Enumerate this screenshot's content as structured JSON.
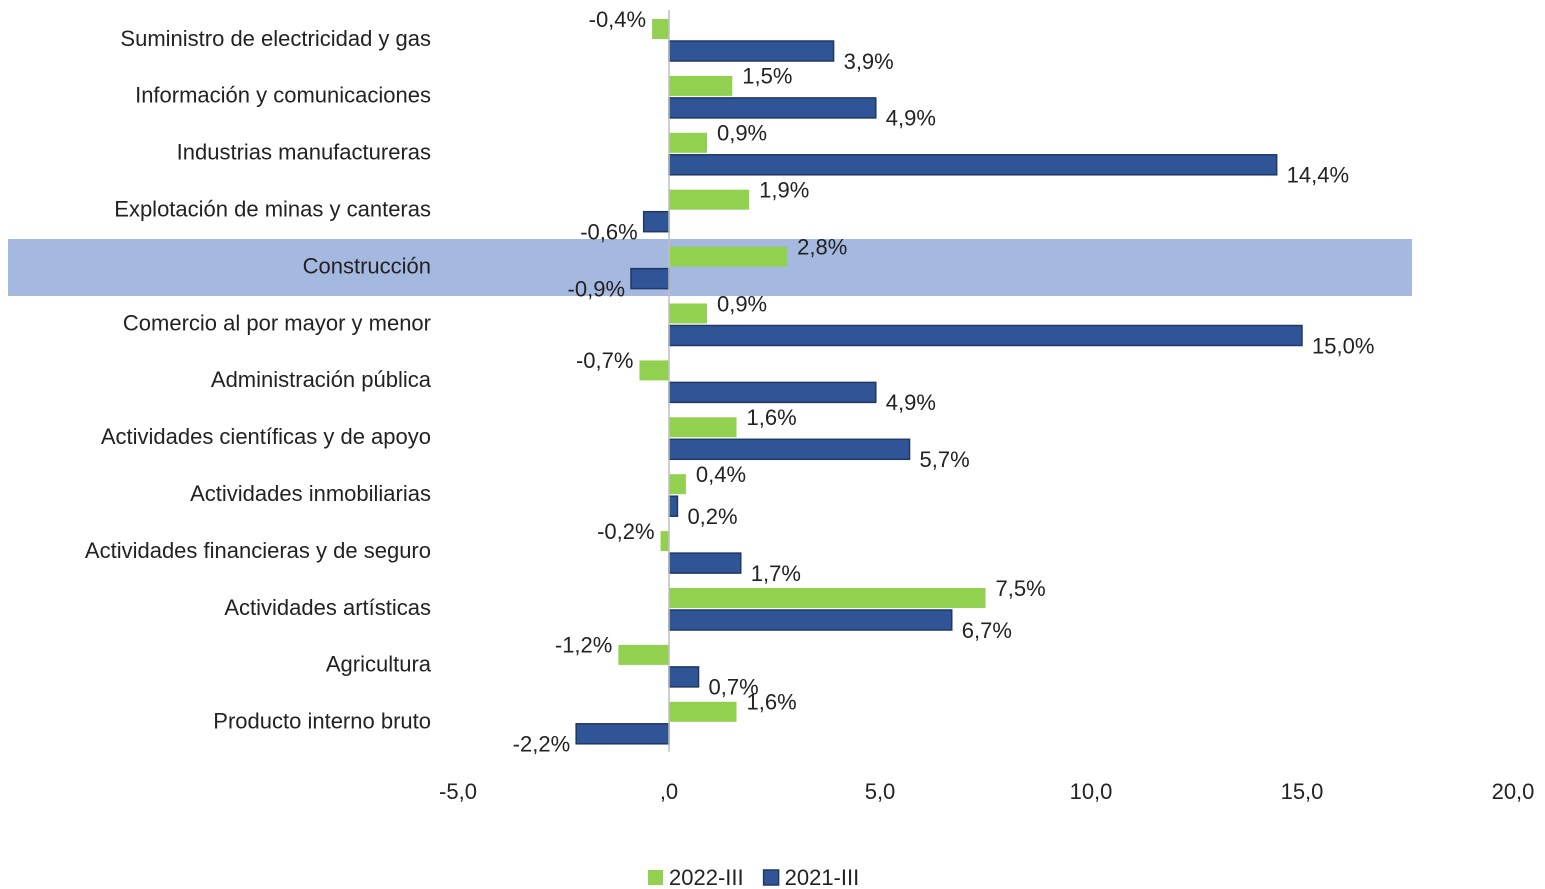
{
  "chart_data": {
    "type": "barh",
    "categories": [
      "Suministro de electricidad y gas",
      "Información y comunicaciones",
      "Industrias manufactureras",
      "Explotación de minas y canteras",
      "Construcción",
      "Comercio al por mayor y menor",
      "Administración pública",
      "Actividades científicas y de apoyo",
      "Actividades inmobiliarias",
      "Actividades financieras y de seguro",
      "Actividades artísticas",
      "Agricultura",
      "Producto interno bruto"
    ],
    "series": [
      {
        "name": "2022-III",
        "color": "#92d050",
        "values": [
          -0.4,
          1.5,
          0.9,
          1.9,
          2.8,
          0.9,
          -0.7,
          1.6,
          0.4,
          -0.2,
          7.5,
          -1.2,
          1.6
        ],
        "value_labels": [
          "-0,4%",
          "1,5%",
          "0,9%",
          "1,9%",
          "2,8%",
          "0,9%",
          "-0,7%",
          "1,6%",
          "0,4%",
          "-0,2%",
          "7,5%",
          "-1,2%",
          "1,6%"
        ]
      },
      {
        "name": "2021-III",
        "color": "#2f5597",
        "values": [
          3.9,
          4.9,
          14.4,
          -0.6,
          -0.9,
          15.0,
          4.9,
          5.7,
          0.2,
          1.7,
          6.7,
          0.7,
          -2.2
        ],
        "value_labels": [
          "3,9%",
          "4,9%",
          "14,4%",
          "-0,6%",
          "-0,9%",
          "15,0%",
          "4,9%",
          "5,7%",
          "0,2%",
          "1,7%",
          "6,7%",
          "0,7%",
          "-2,2%"
        ]
      }
    ],
    "xlim": [
      -5,
      20
    ],
    "xticks": [
      {
        "value": -5,
        "label": "-5,0"
      },
      {
        "value": 0,
        "label": ",0"
      },
      {
        "value": 5,
        "label": "5,0"
      },
      {
        "value": 10,
        "label": "10,0"
      },
      {
        "value": 15,
        "label": "15,0"
      },
      {
        "value": 20,
        "label": "20,0"
      }
    ],
    "legend": "bottom"
  }
}
